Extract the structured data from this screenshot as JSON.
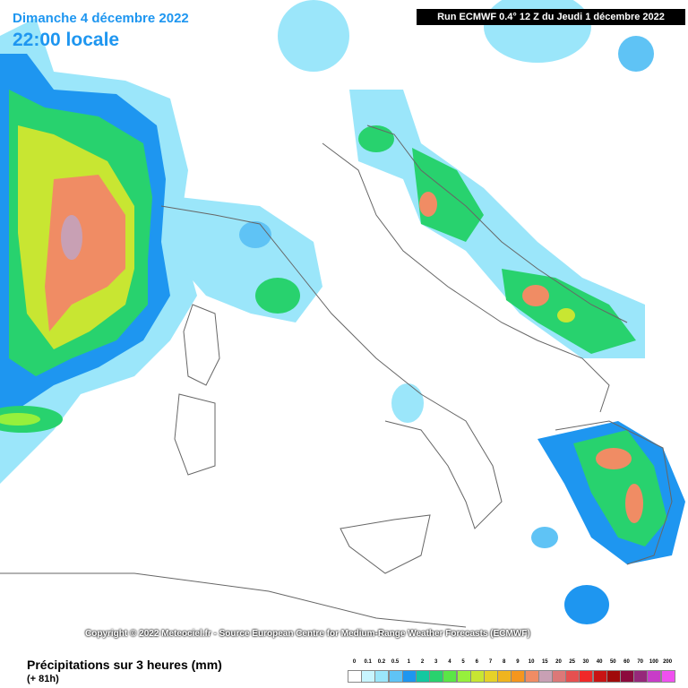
{
  "header": {
    "date": "Dimanche 4 décembre 2022",
    "time": "22:00 locale",
    "run": "Run ECMWF 0.4° 12 Z du Jeudi 1 décembre 2022"
  },
  "copyright": "Copyright © 2022 Meteociel.fr - Source European Centre for Medium-Range Weather Forecasts (ECMWF)",
  "footer": {
    "title": "Précipitations sur 3 heures (mm)",
    "lead": "(+ 81h)"
  },
  "legend": [
    {
      "label": 0,
      "color": "#ffffff"
    },
    {
      "label": 0.1,
      "color": "#c8f5ff"
    },
    {
      "label": 0.2,
      "color": "#9be6fa"
    },
    {
      "label": 0.5,
      "color": "#5fc3f5"
    },
    {
      "label": 1,
      "color": "#1e96f0"
    },
    {
      "label": 2,
      "color": "#14c8a0"
    },
    {
      "label": 3,
      "color": "#28d26e"
    },
    {
      "label": 4,
      "color": "#5ae646"
    },
    {
      "label": 5,
      "color": "#96f03c"
    },
    {
      "label": 6,
      "color": "#c8e632"
    },
    {
      "label": 7,
      "color": "#e6d228"
    },
    {
      "label": 8,
      "color": "#f0b41e"
    },
    {
      "label": 9,
      "color": "#f5961e"
    },
    {
      "label": 10,
      "color": "#f08c64"
    },
    {
      "label": 15,
      "color": "#c8a0b4"
    },
    {
      "label": 20,
      "color": "#dc7878"
    },
    {
      "label": 25,
      "color": "#e65050"
    },
    {
      "label": 30,
      "color": "#f02828"
    },
    {
      "label": 40,
      "color": "#c81414"
    },
    {
      "label": 50,
      "color": "#a00a0a"
    },
    {
      "label": 60,
      "color": "#8c0a3c"
    },
    {
      "label": 70,
      "color": "#96287a"
    },
    {
      "label": 100,
      "color": "#c83cc8"
    },
    {
      "label": 200,
      "color": "#f050f0"
    }
  ]
}
